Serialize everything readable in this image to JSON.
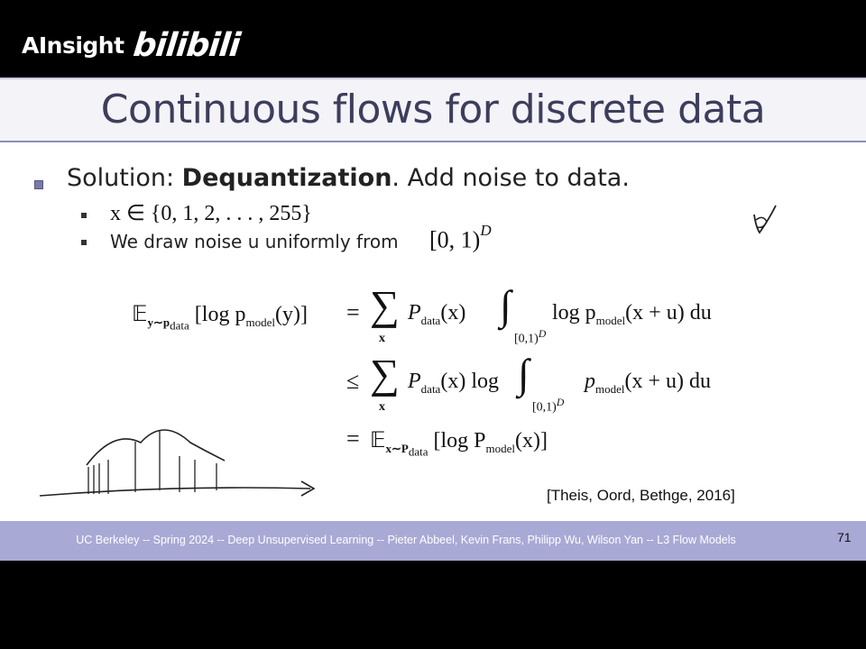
{
  "watermark": {
    "brand": "AInsight",
    "site": "bilibili"
  },
  "slide": {
    "title": "Continuous flows for discrete data",
    "bullet": {
      "prefix": "Solution: ",
      "bold": "Dequantization",
      "suffix": ". Add noise to data."
    },
    "sub_bullets": {
      "set": "x ∈ {0, 1, 2, . . . , 255}",
      "noise_text": "We draw noise u uniformly from",
      "noise_interval": "[0, 1)",
      "noise_exponent": "D"
    },
    "equation": {
      "line1_lhs_E": "𝔼",
      "line1_lhs_sub": "y∼p",
      "line1_lhs_sub2": "data",
      "line1_lhs_rest": "[log p",
      "line1_lhs_model": "model",
      "line1_lhs_end": "(y)]",
      "eq": "=",
      "leq": "≤",
      "sum": "∑",
      "sum_sub": "x",
      "P": "P",
      "data_sub": "data",
      "x_arg": "(x)",
      "integral": "∫",
      "int_sub": "[0,1)",
      "int_sub_exp": "D",
      "log_p": "log p",
      "log": "log",
      "p": "p",
      "model_sub": "model",
      "xu_arg": "(x + u) du",
      "line3_E_sub": "x∼P",
      "line3_rest": "[log P",
      "line3_end": "(x)]"
    },
    "citation": "[Theis, Oord, Bethge, 2016]",
    "footer": "UC Berkeley -- Spring 2024 -- Deep Unsupervised Learning -- Pieter Abbeel, Kevin Frans, Philipp Wu, Wilson Yan -- L3 Flow Models",
    "page_number": "71"
  }
}
